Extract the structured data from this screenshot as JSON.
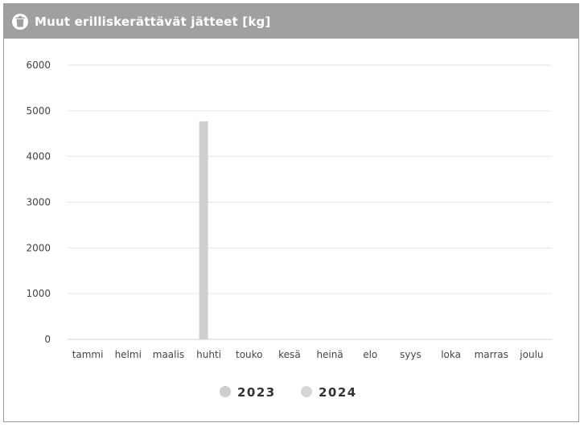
{
  "panel": {
    "title": "Muut erilliskerättävät jätteet [kg]",
    "icon": "trash-bin-icon"
  },
  "colors": {
    "header_bg": "#a0a0a0",
    "series_2023": "#cfcfcf",
    "series_2024": "#d6d6d6",
    "grid": "#e6e6e6",
    "axis": "#ccd6eb"
  },
  "chart_data": {
    "type": "bar",
    "title": "Muut erilliskerättävät jätteet [kg]",
    "categories": [
      "tammi",
      "helmi",
      "maalis",
      "huhti",
      "touko",
      "kesä",
      "heinä",
      "elo",
      "syys",
      "loka",
      "marras",
      "joulu"
    ],
    "series": [
      {
        "name": "2023",
        "values": [
          0,
          0,
          0,
          4770,
          0,
          0,
          0,
          0,
          0,
          0,
          0,
          0
        ]
      },
      {
        "name": "2024",
        "values": [
          0,
          0,
          0,
          0,
          0,
          0,
          0,
          0,
          0,
          0,
          0,
          0
        ]
      }
    ],
    "yticks": [
      "0",
      "1000",
      "2000",
      "3000",
      "4000",
      "5000",
      "6000"
    ],
    "ylim": [
      0,
      6000
    ],
    "grid": true,
    "legend": "bottom-center"
  }
}
